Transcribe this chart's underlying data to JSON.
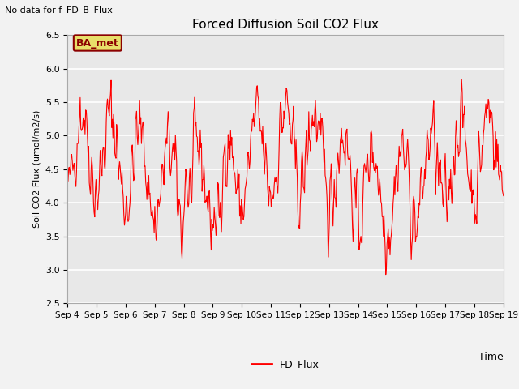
{
  "title": "Forced Diffusion Soil CO2 Flux",
  "no_data_text": "No data for f_FD_B_Flux",
  "legend_box_text": "BA_met",
  "xlabel": "Time",
  "ylabel": "Soil CO2 Flux (umol/m2/s)",
  "ylim": [
    2.5,
    6.5
  ],
  "line_color": "red",
  "line_label": "FD_Flux",
  "bg_color": "#e8e8e8",
  "fig_color": "#f2f2f2",
  "xtick_labels": [
    "Sep 4",
    "Sep 5",
    "Sep 6",
    "Sep 7",
    "Sep 8",
    "Sep 9",
    "Sep 10",
    "Sep 11",
    "Sep 12",
    "Sep 13",
    "Sep 14",
    "Sep 15",
    "Sep 16",
    "Sep 17",
    "Sep 18",
    "Sep 19"
  ],
  "seed": 42
}
